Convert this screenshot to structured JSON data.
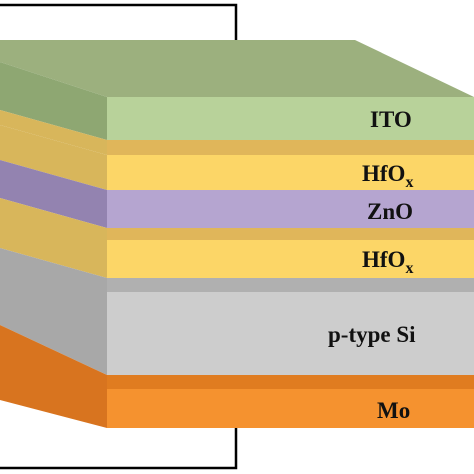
{
  "diagram": {
    "title": "",
    "layers": [
      {
        "id": "ito",
        "label": "ITO",
        "sub": "",
        "color_front": "#b8d29a",
        "color_top": "#9cb07e",
        "color_side": "#8ea772"
      },
      {
        "id": "hfox-top",
        "label": "HfO",
        "sub": "x",
        "color_front": "#fcd667",
        "color_top": "#e8c45f",
        "color_side": "#d8b65b"
      },
      {
        "id": "zno",
        "label": "ZnO",
        "sub": "",
        "color_front": "#b5a5d0",
        "color_top": "#a090c0",
        "color_side": "#9383b0"
      },
      {
        "id": "hfox-bottom",
        "label": "HfO",
        "sub": "x",
        "color_front": "#fcd667",
        "color_top": "#e8c45f",
        "color_side": "#d8b65b"
      },
      {
        "id": "p-si",
        "label": "p-type Si",
        "sub": "",
        "color_front": "#cdcdcd",
        "color_top": "#b3b3b3",
        "color_side": "#a8a8a8"
      },
      {
        "id": "mo",
        "label": "Mo",
        "sub": "",
        "color_front": "#f5922f",
        "color_top": "#e07c20",
        "color_side": "#d8741f"
      }
    ],
    "wire_color": "#000000"
  }
}
